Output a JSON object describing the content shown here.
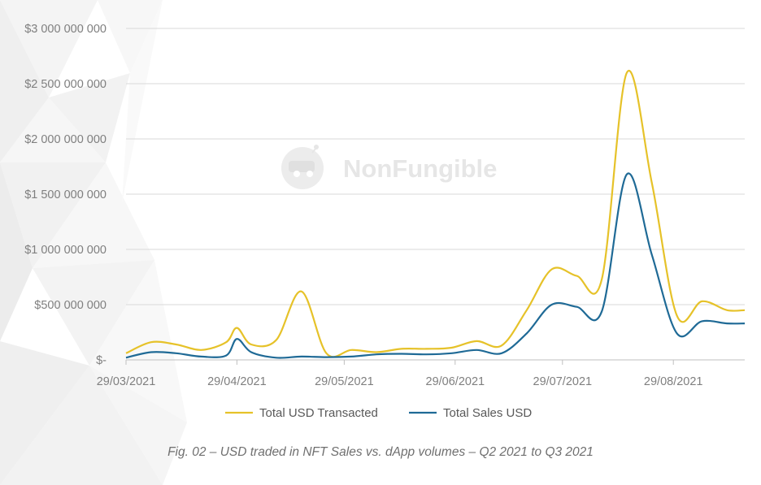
{
  "watermark": "NonFungible",
  "caption": "Fig. 02 – USD traded in NFT Sales vs. dApp volumes – Q2 2021 to Q3 2021",
  "colors": {
    "transacted": "#e6c229",
    "sales": "#1f6a96",
    "grid": "#d9d9d9",
    "axis": "#bfbfbf"
  },
  "chart_data": {
    "type": "line",
    "title": "",
    "xlabel": "",
    "ylabel": "",
    "x": [
      "29/03/2021",
      "05/04/2021",
      "12/04/2021",
      "19/04/2021",
      "26/04/2021",
      "29/04/2021",
      "03/05/2021",
      "10/05/2021",
      "17/05/2021",
      "24/05/2021",
      "31/05/2021",
      "07/06/2021",
      "14/06/2021",
      "21/06/2021",
      "28/06/2021",
      "05/07/2021",
      "12/07/2021",
      "19/07/2021",
      "26/07/2021",
      "02/08/2021",
      "09/08/2021",
      "16/08/2021",
      "23/08/2021",
      "30/08/2021",
      "06/09/2021",
      "13/09/2021",
      "20/09/2021"
    ],
    "series": [
      {
        "name": "Total USD Transacted",
        "values": [
          60000000,
          160000000,
          140000000,
          90000000,
          160000000,
          290000000,
          140000000,
          180000000,
          620000000,
          60000000,
          90000000,
          70000000,
          100000000,
          100000000,
          110000000,
          170000000,
          130000000,
          450000000,
          820000000,
          760000000,
          730000000,
          2600000000,
          1600000000,
          400000000,
          530000000,
          450000000,
          450000000
        ]
      },
      {
        "name": "Total Sales USD",
        "values": [
          20000000,
          70000000,
          60000000,
          30000000,
          40000000,
          190000000,
          70000000,
          20000000,
          30000000,
          25000000,
          30000000,
          50000000,
          55000000,
          50000000,
          60000000,
          90000000,
          60000000,
          240000000,
          500000000,
          480000000,
          440000000,
          1680000000,
          950000000,
          240000000,
          350000000,
          330000000,
          330000000
        ]
      }
    ],
    "x_ticks": [
      "29/03/2021",
      "29/04/2021",
      "29/05/2021",
      "29/06/2021",
      "29/07/2021",
      "29/08/2021"
    ],
    "y_ticks": [
      "$-",
      "$500 000 000",
      "$1 000 000 000",
      "$1 500 000 000",
      "$2 000 000 000",
      "$2 500 000 000",
      "$3 000 000 000"
    ],
    "ylim": [
      0,
      3000000000
    ],
    "grid": true,
    "legend_position": "bottom"
  }
}
